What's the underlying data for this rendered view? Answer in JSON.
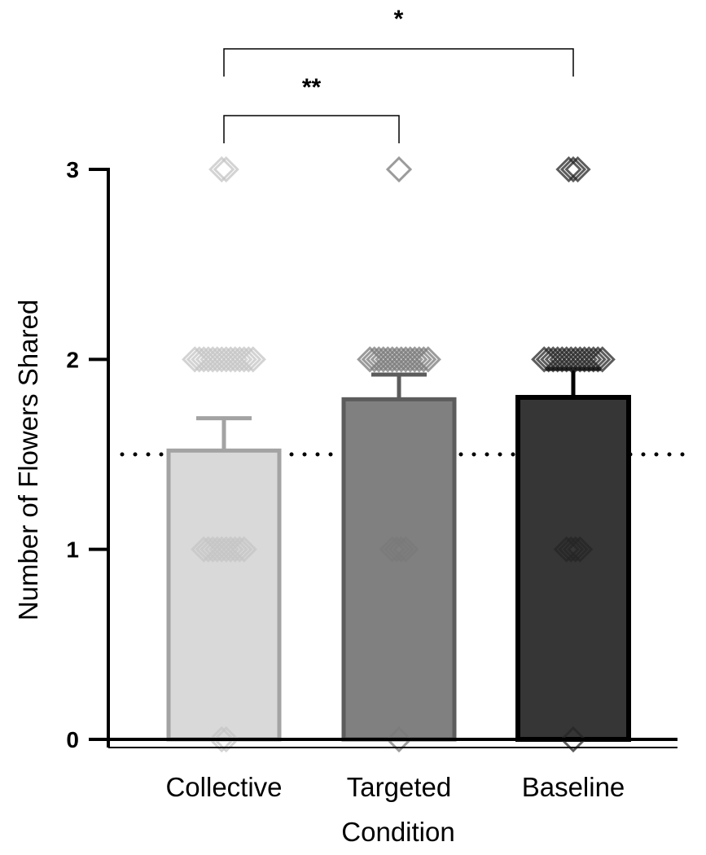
{
  "chart_data": {
    "type": "bar",
    "xlabel": "Condition",
    "ylabel": "Number of Flowers Shared",
    "ylim": [
      0,
      3
    ],
    "yticks": [
      "0",
      "1",
      "2",
      "3"
    ],
    "categories": [
      "Collective",
      "Targeted",
      "Baseline"
    ],
    "values": [
      1.52,
      1.79,
      1.8
    ],
    "error_upper": [
      1.69,
      1.92,
      1.95
    ],
    "reference_line": 1.5,
    "colors": {
      "fill": [
        "#d9d9d9",
        "#808080",
        "#363636"
      ],
      "stroke": [
        "#a3a3a3",
        "#5c5c5c",
        "#000000"
      ],
      "points": [
        "#c4c4c4",
        "#7a7a7a",
        "#262626"
      ]
    },
    "points": [
      [
        {
          "y": 0,
          "n": 2
        },
        {
          "y": 1,
          "n": 10
        },
        {
          "y": 2,
          "n": 14
        },
        {
          "y": 3,
          "n": 2
        }
      ],
      [
        {
          "y": 0,
          "n": 1
        },
        {
          "y": 1,
          "n": 4
        },
        {
          "y": 2,
          "n": 14
        },
        {
          "y": 3,
          "n": 1
        }
      ],
      [
        {
          "y": 0,
          "n": 1
        },
        {
          "y": 1,
          "n": 4
        },
        {
          "y": 2,
          "n": 14
        },
        {
          "y": 3,
          "n": 3
        }
      ]
    ],
    "significance": [
      {
        "from": "Collective",
        "to": "Targeted",
        "label": "**"
      },
      {
        "from": "Collective",
        "to": "Baseline",
        "label": "*"
      }
    ]
  }
}
